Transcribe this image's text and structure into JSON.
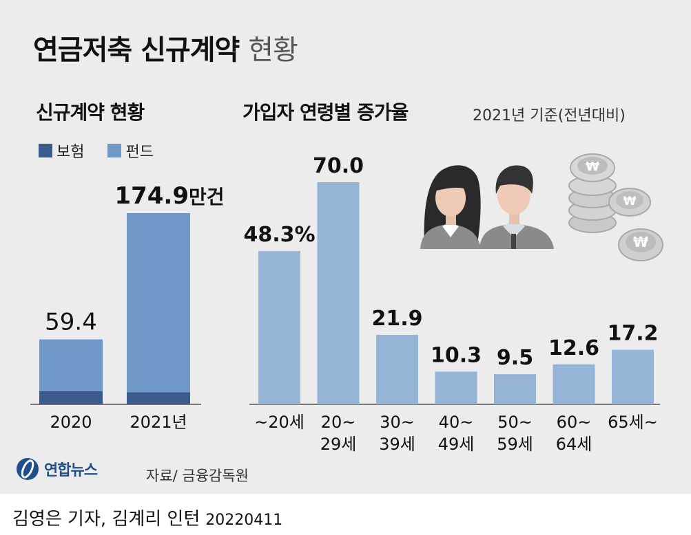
{
  "title": {
    "bold": "연금저축 신규계약",
    "light": "현황"
  },
  "left_section": {
    "subtitle": "신규계약 현황",
    "legend": [
      {
        "label": "보험",
        "color": "#3b5b8c"
      },
      {
        "label": "펀드",
        "color": "#6f98c6"
      }
    ]
  },
  "right_section": {
    "subtitle": "가입자 연령별 증가율",
    "note": "2021년 기준(전년대비)"
  },
  "colors": {
    "background": "#ececec",
    "age_bar": "#96b4d6",
    "insurance": "#3b5b8c",
    "fund": "#6f98c6"
  },
  "icons": [
    "woman-avatar-icon",
    "man-avatar-icon",
    "won-coins-icon"
  ],
  "chart_data": [
    {
      "type": "bar",
      "stacked": true,
      "categories": [
        "2020",
        "2021년"
      ],
      "series": [
        {
          "name": "보험",
          "values": [
            12,
            11
          ]
        },
        {
          "name": "펀드",
          "values": [
            47.4,
            163.9
          ]
        }
      ],
      "totals": [
        59.4,
        174.9
      ],
      "total_labels": [
        "59.4",
        "174.9만건"
      ],
      "ylim": [
        0,
        180
      ]
    },
    {
      "type": "bar",
      "categories": [
        "~20세",
        "20~\n29세",
        "30~\n39세",
        "40~\n49세",
        "50~\n59세",
        "60~\n64세",
        "65세~"
      ],
      "values": [
        48.3,
        70.0,
        21.9,
        10.3,
        9.5,
        12.6,
        17.2
      ],
      "value_labels": [
        "48.3%",
        "70.0",
        "21.9",
        "10.3",
        "9.5",
        "12.6",
        "17.2"
      ],
      "ylim": [
        0,
        70
      ]
    }
  ],
  "footer": {
    "logo_text": "연합뉴스",
    "source": "자료/ 금융감독원",
    "credit": "김영은 기자, 김계리 인턴",
    "date": "20220411"
  }
}
